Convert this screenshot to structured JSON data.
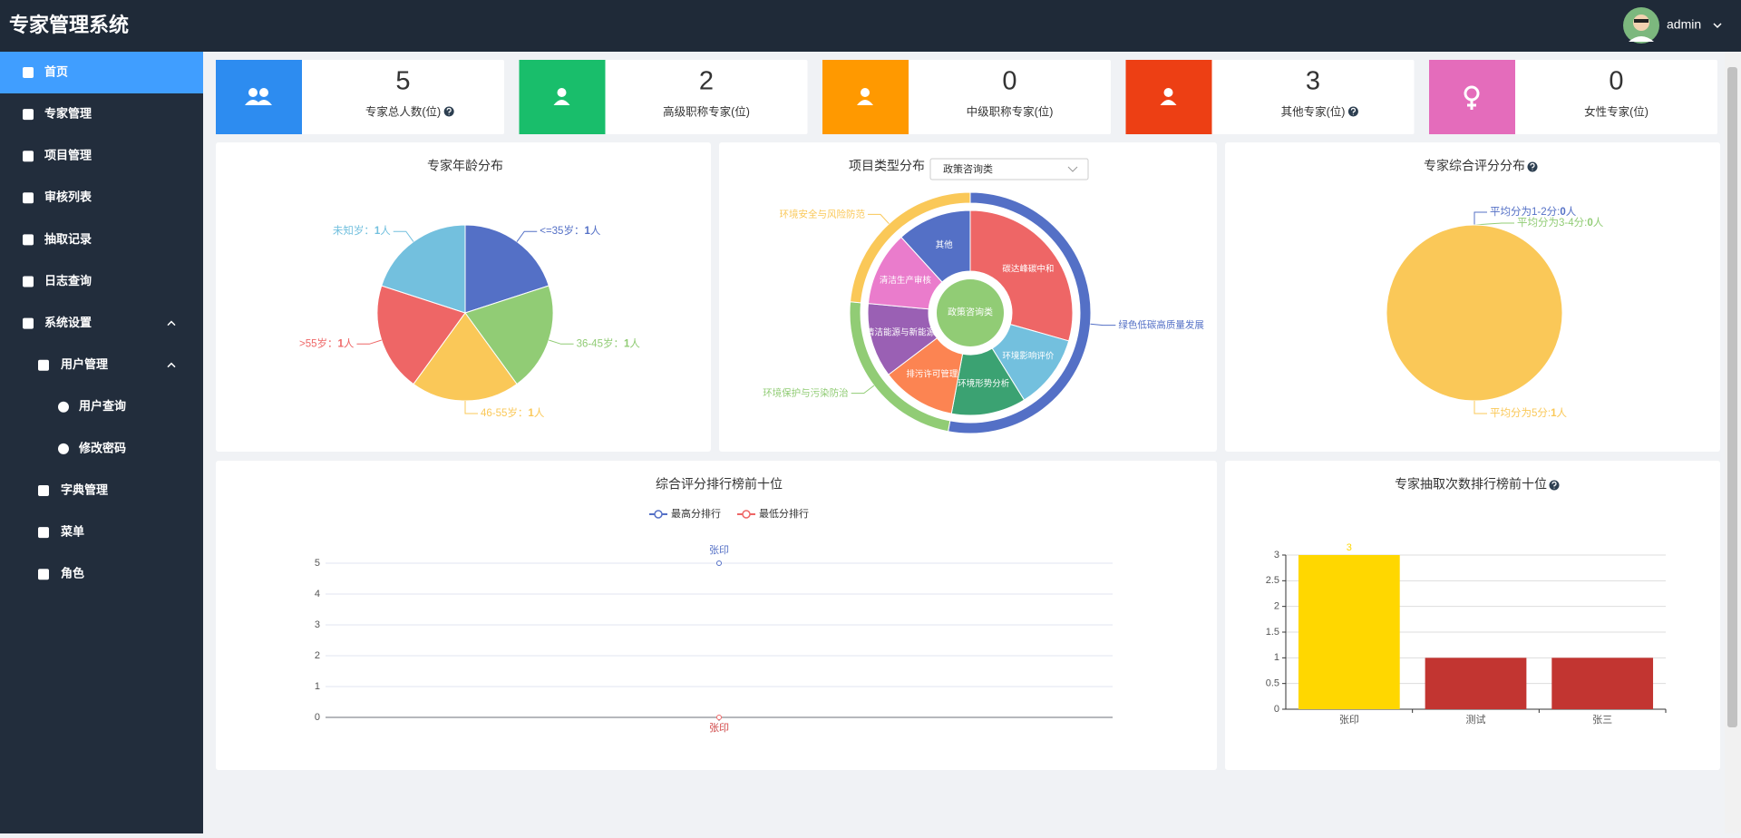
{
  "header": {
    "title": "专家管理系统",
    "user": "admin"
  },
  "menu": [
    "首页",
    "专家管理",
    "项目管理",
    "审核列表",
    "抽取记录",
    "日志查询",
    "系统设置",
    "用户管理",
    "用户查询",
    "修改密码",
    "字典管理",
    "菜单",
    "角色"
  ],
  "stats": [
    {
      "value": 5,
      "label": "专家总人数(位)",
      "color": "#2d8cf0",
      "help": true
    },
    {
      "value": 2,
      "label": "高级职称专家(位)",
      "color": "#19be6b",
      "help": false
    },
    {
      "value": 0,
      "label": "中级职称专家(位)",
      "color": "#ff9900",
      "help": false
    },
    {
      "value": 3,
      "label": "其他专家(位)",
      "color": "#ed3f14",
      "help": true
    },
    {
      "value": 0,
      "label": "女性专家(位)",
      "color": "#e46cbb",
      "help": false
    }
  ],
  "charts": [
    {
      "type": "pie",
      "title": "专家年龄分布",
      "separator": "：",
      "unit": "人",
      "slices": [
        {
          "name": "<=35岁",
          "value": 1,
          "color": "#5470c6"
        },
        {
          "name": "36-45岁",
          "value": 1,
          "color": "#91cc75"
        },
        {
          "name": "46-55岁",
          "value": 1,
          "color": "#fac858"
        },
        {
          "name": ">55岁",
          "value": 1,
          "color": "#ee6666"
        },
        {
          "name": "未知岁",
          "value": 1,
          "color": "#73c0de"
        }
      ]
    },
    {
      "type": "sunburst",
      "title": "项目类型分布",
      "filter": "政策咨询类",
      "center": {
        "name": "政策咨询类",
        "color": "#91cc75"
      },
      "groups": [
        {
          "name": "绿色低碳高质量发展",
          "color": "#5470c6",
          "children": [
            {
              "name": "碳达峰碳中和",
              "value": 5,
              "color": "#ee6666"
            },
            {
              "name": "环境影响评价",
              "value": 2,
              "color": "#73c0de"
            },
            {
              "name": "环境形势分析",
              "value": 2,
              "color": "#3ba272"
            }
          ]
        },
        {
          "name": "环境保护与污染防治",
          "color": "#91cc75",
          "children": [
            {
              "name": "排污许可管理",
              "value": 2,
              "color": "#fc8452"
            },
            {
              "name": "清洁能源与新能源",
              "value": 2,
              "color": "#9a60b4"
            }
          ]
        },
        {
          "name": "环境安全与风险防范",
          "color": "#fac858",
          "children": [
            {
              "name": "清洁生产审核",
              "value": 2,
              "color": "#ea7ccc"
            },
            {
              "name": "其他",
              "value": 2,
              "color": "#5470c6"
            }
          ]
        }
      ]
    },
    {
      "type": "pie",
      "title": "专家综合评分分布",
      "help": true,
      "separator": ":",
      "unit": "人",
      "slices": [
        {
          "name": "平均分为1-2分",
          "value": 0,
          "color": "#5470c6"
        },
        {
          "name": "平均分为3-4分",
          "value": 0,
          "color": "#91cc75"
        },
        {
          "name": "平均分为5分",
          "value": 1,
          "color": "#fac858"
        }
      ]
    },
    {
      "type": "line",
      "title": "综合评分排行榜前十位",
      "categories": [
        "张印"
      ],
      "series": [
        {
          "name": "最高分排行",
          "color": "#5470c6",
          "values": [
            5
          ]
        },
        {
          "name": "最低分排行",
          "color": "#ee6666",
          "values": [
            0
          ]
        }
      ],
      "ylim": [
        0,
        5
      ],
      "yticks": [
        0,
        1,
        2,
        3,
        4,
        5
      ],
      "grid": true
    },
    {
      "type": "bar",
      "title": "专家抽取次数排行榜前十位",
      "help": true,
      "categories": [
        "张印",
        "测试",
        "张三"
      ],
      "values": [
        3,
        1,
        1
      ],
      "value_labels": [
        "3",
        null,
        null
      ],
      "colors": [
        "#ffd700",
        "#c23531",
        "#c23531"
      ],
      "ylim": [
        0,
        3
      ],
      "yticks": [
        0,
        0.5,
        1,
        1.5,
        2,
        2.5,
        3
      ],
      "grid": true
    }
  ]
}
